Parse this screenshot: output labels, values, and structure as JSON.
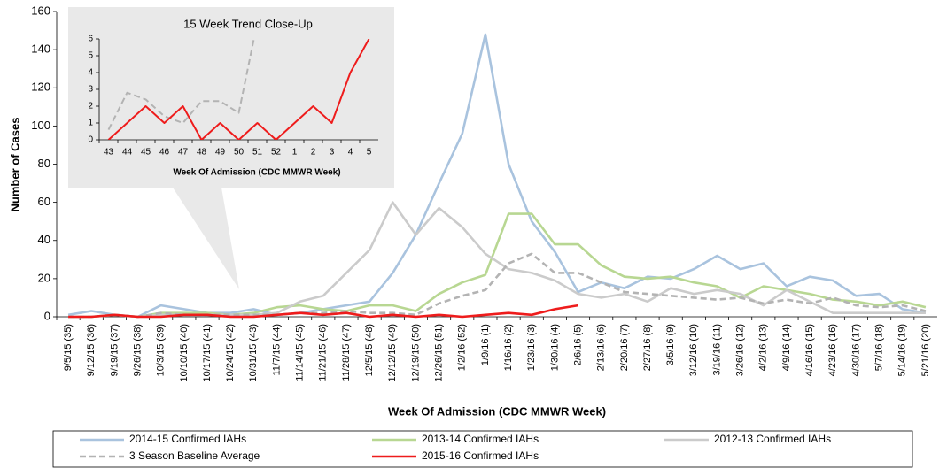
{
  "chart_data": [
    {
      "type": "line",
      "xlabel": "Week Of Admission  (CDC MMWR Week)",
      "ylabel": "Number of Cases",
      "categories": [
        "9/5/15 (35)",
        "9/12/15 (36)",
        "9/19/15 (37)",
        "9/26/15 (38)",
        "10/3/15 (39)",
        "10/10/15 (40)",
        "10/17/15 (41)",
        "10/24/15 (42)",
        "10/31/15 (43)",
        "11/7/15 (44)",
        "11/14/15 (45)",
        "11/21/15 (46)",
        "11/28/15 (47)",
        "12/5/15 (48)",
        "12/12/15 (49)",
        "12/19/15 (50)",
        "12/26/15 (51)",
        "1/2/16 (52)",
        "1/9/16 (1)",
        "1/16/16 (2)",
        "1/23/16 (3)",
        "1/30/16 (4)",
        "2/6/16 (5)",
        "2/13/16 (6)",
        "2/20/16 (7)",
        "2/27/16 (8)",
        "3/5/16 (9)",
        "3/12/16 (10)",
        "3/19/16 (11)",
        "3/26/16 (12)",
        "4/2/16 (13)",
        "4/9/16 (14)",
        "4/16/16 (15)",
        "4/23/16 (16)",
        "4/30/16 (17)",
        "5/7/16 (18)",
        "5/14/16 (19)",
        "5/21/16 (20)"
      ],
      "series": [
        {
          "name": "2014-15 Confirmed IAHs",
          "color": "#a9c3de",
          "style": "solid",
          "values": [
            1,
            3,
            1,
            0,
            6,
            4,
            2,
            2,
            4,
            1,
            2,
            4,
            6,
            8,
            23,
            43,
            70,
            96,
            148,
            80,
            50,
            34,
            13,
            18,
            15,
            21,
            20,
            25,
            32,
            25,
            28,
            16,
            21,
            19,
            11,
            12,
            4,
            2
          ]
        },
        {
          "name": "2013-14 Confirmed IAHs",
          "color": "#b8d792",
          "style": "solid",
          "values": [
            0,
            0,
            1,
            0,
            2,
            2,
            2,
            1,
            2,
            5,
            6,
            4,
            3,
            6,
            6,
            3,
            12,
            18,
            22,
            54,
            54,
            38,
            38,
            27,
            21,
            20,
            21,
            18,
            16,
            10,
            16,
            14,
            12,
            9,
            8,
            6,
            8,
            5
          ]
        },
        {
          "name": "2012-13 Confirmed IAHs",
          "color": "#cbcbcb",
          "style": "solid",
          "values": [
            0,
            0,
            1,
            0,
            1,
            1,
            1,
            1,
            1,
            2,
            8,
            11,
            23,
            35,
            60,
            43,
            57,
            47,
            33,
            25,
            23,
            19,
            12,
            10,
            12,
            8,
            15,
            12,
            14,
            12,
            6,
            14,
            8,
            2,
            2,
            2,
            2,
            2
          ]
        },
        {
          "name": "3 Season Baseline Average",
          "color": "#b3b3b3",
          "style": "dashed",
          "values": [
            0,
            0,
            1,
            0,
            2,
            1,
            1,
            1,
            1,
            1,
            2,
            2,
            3,
            2,
            2,
            1,
            7,
            11,
            14,
            28,
            33,
            23,
            23,
            18,
            13,
            12,
            11,
            10,
            9,
            10,
            7,
            9,
            7,
            10,
            6,
            5,
            6,
            3
          ]
        },
        {
          "name": "2015-16 Confirmed IAHs",
          "color": "#ee1c1c",
          "style": "solid",
          "values": [
            0,
            0,
            1,
            0,
            0,
            1,
            1,
            0,
            0,
            1,
            2,
            1,
            2,
            0,
            1,
            0,
            1,
            0,
            1,
            2,
            1,
            4,
            6,
            null,
            null,
            null,
            null,
            null,
            null,
            null,
            null,
            null,
            null,
            null,
            null,
            null,
            null,
            null
          ]
        }
      ],
      "ylim": [
        0,
        160
      ],
      "yticks": [
        0,
        20,
        40,
        60,
        80,
        100,
        120,
        140,
        160
      ],
      "grid": false,
      "legend": "bottom"
    },
    {
      "type": "line",
      "title": "15 Week Trend Close-Up",
      "xlabel": "Week Of Admission  (CDC MMWR Week)",
      "categories": [
        "43",
        "44",
        "45",
        "46",
        "47",
        "48",
        "49",
        "50",
        "51",
        "52",
        "1",
        "2",
        "3",
        "4",
        "5"
      ],
      "series": [
        {
          "color": "#b3b3b3",
          "style": "dashed",
          "values": [
            0.6,
            2.8,
            2.4,
            1.4,
            1,
            2.3,
            2.3,
            1.6,
            7,
            null,
            null,
            null,
            null,
            null,
            null
          ]
        },
        {
          "color": "#ee1c1c",
          "style": "solid",
          "values": [
            0,
            1,
            2,
            1,
            2,
            0,
            1,
            0,
            1,
            0,
            1,
            2,
            1,
            4,
            6
          ]
        }
      ],
      "ylim": [
        0,
        6
      ],
      "yticks": [
        0,
        1,
        2,
        3,
        4,
        5,
        6
      ],
      "grid": false
    }
  ]
}
